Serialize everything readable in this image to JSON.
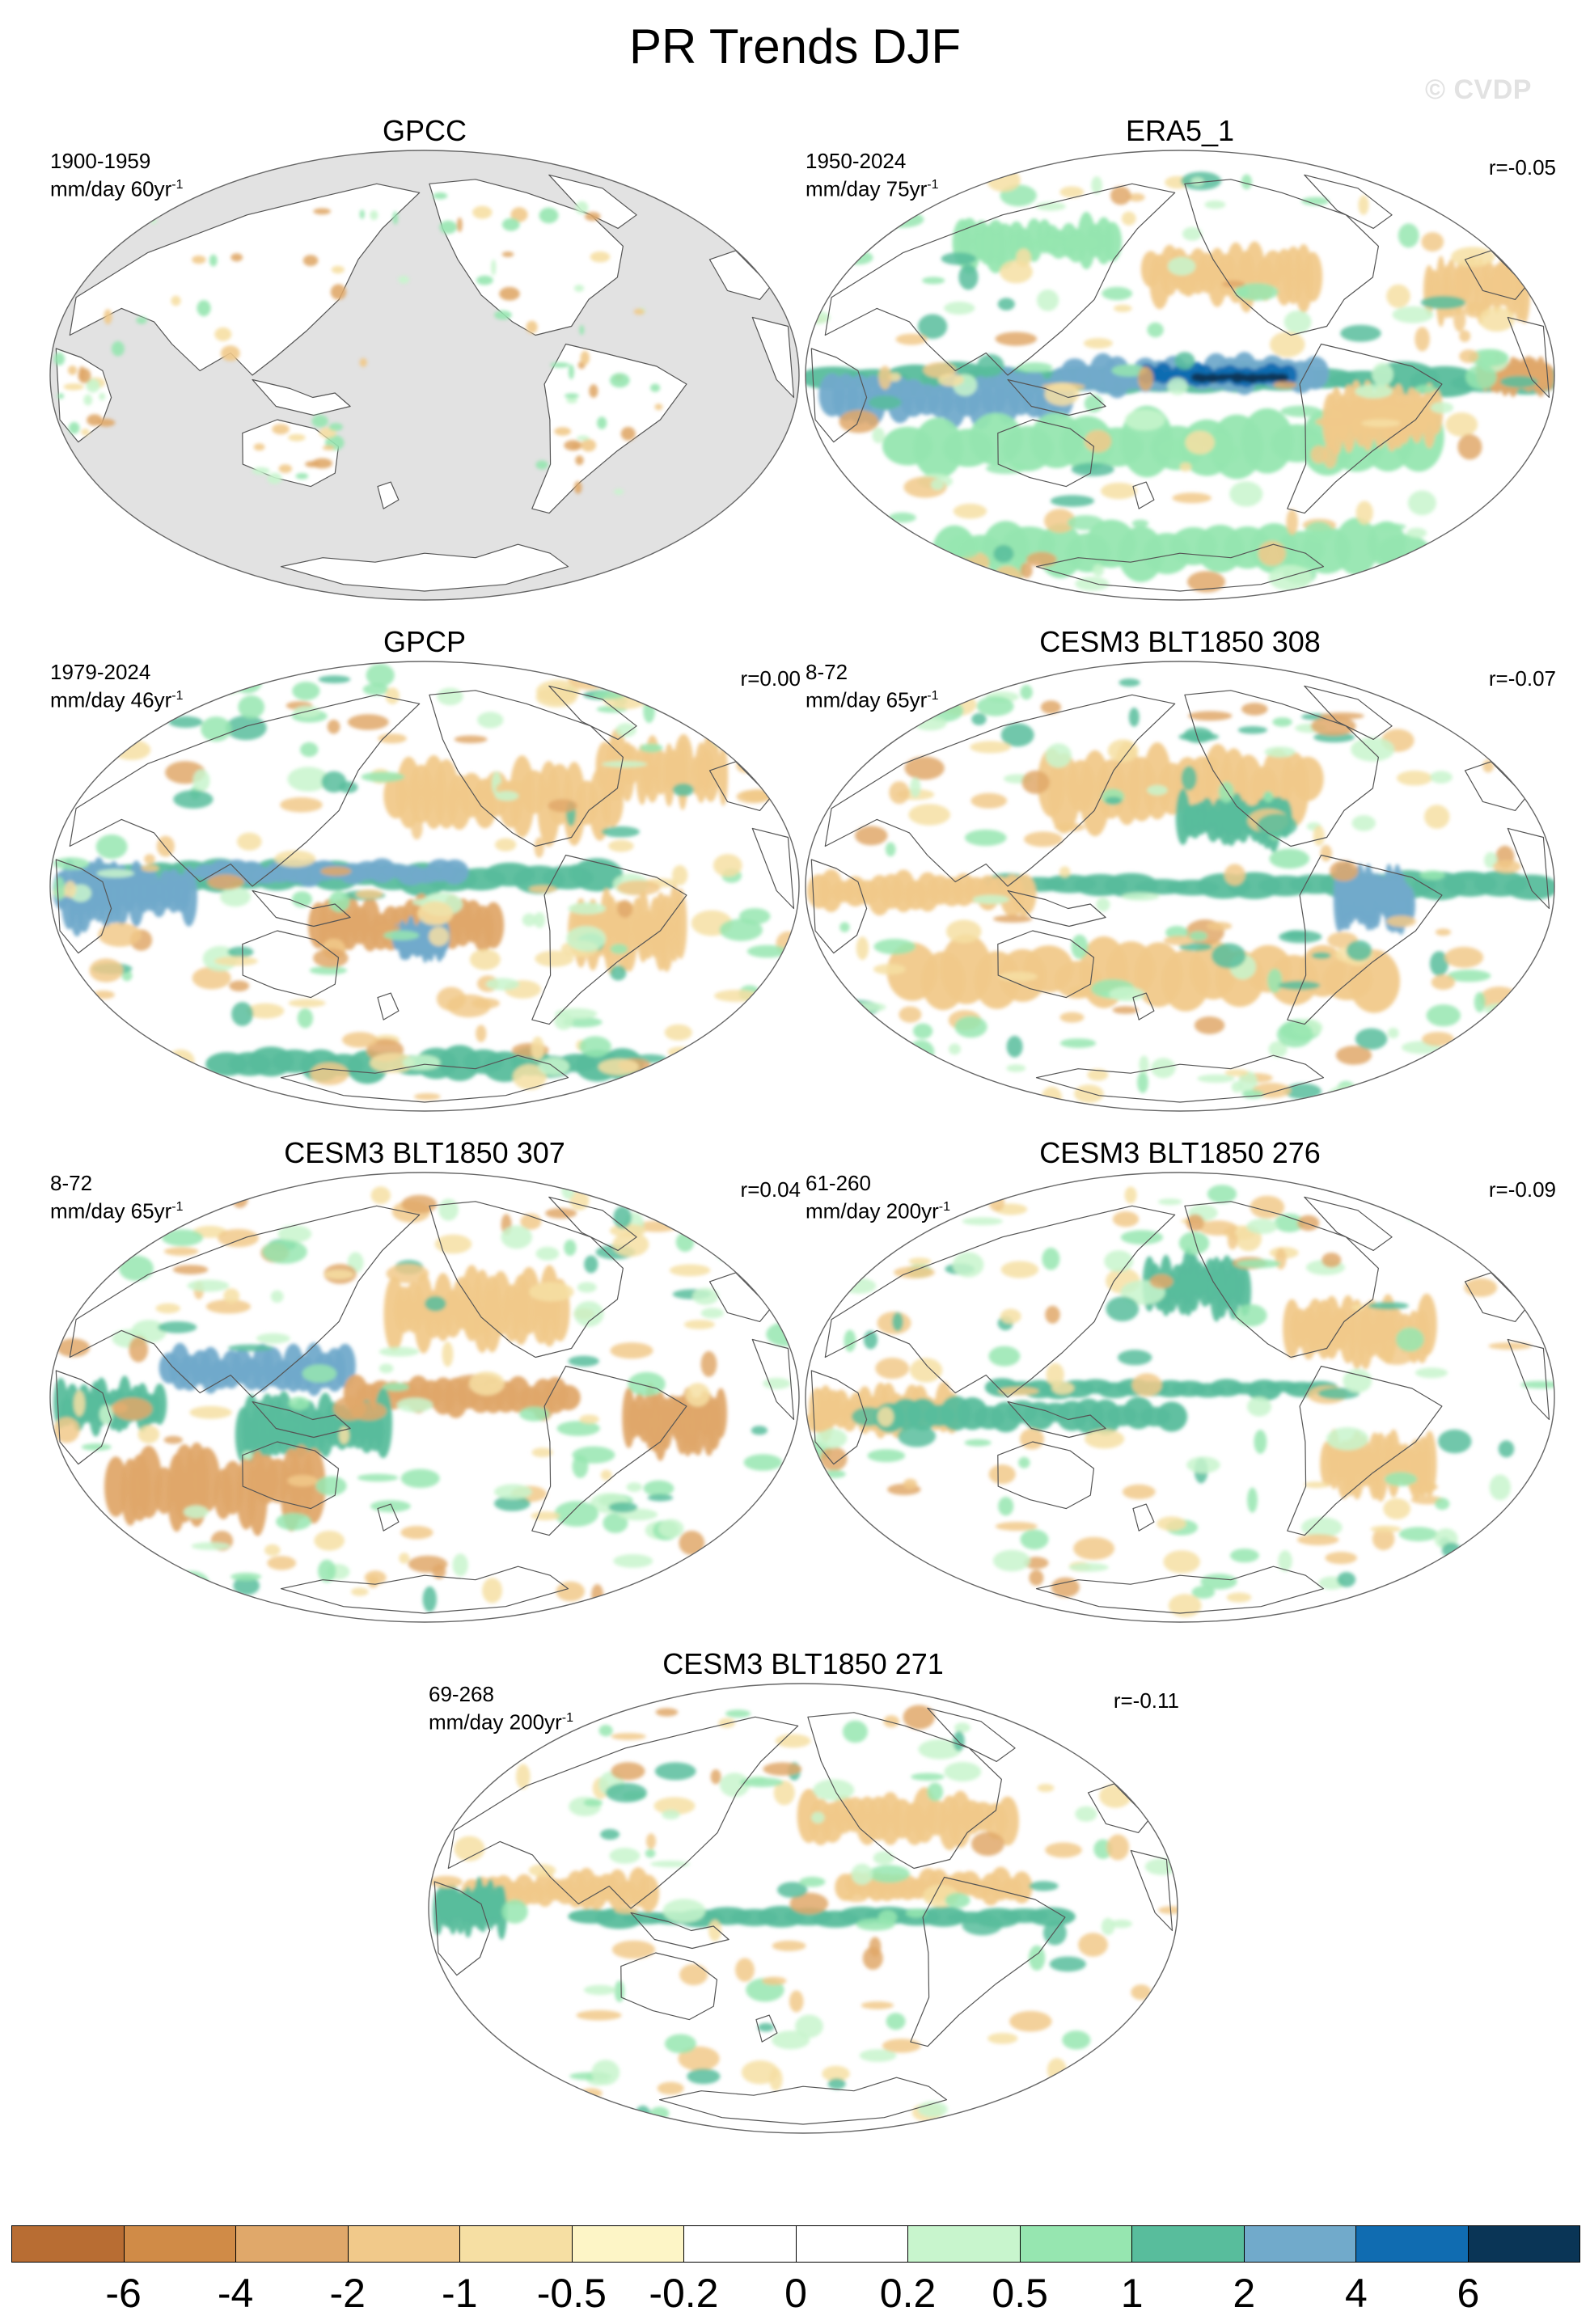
{
  "title": "PR Trends DJF",
  "watermark": "© CVDP",
  "panels": [
    {
      "title": "GPCC",
      "period": "1900-1959",
      "units": "mm/day 60yr",
      "units_exp": "-1",
      "corr": "",
      "pattern": "land-only",
      "grey_ocean": true
    },
    {
      "title": "ERA5_1",
      "period": "1950-2024",
      "units": "mm/day 75yr",
      "units_exp": "-1",
      "corr": "r=-0.05",
      "pattern": "era5",
      "grey_ocean": false
    },
    {
      "title": "GPCP",
      "period": "1979-2024",
      "units": "mm/day 46yr",
      "units_exp": "-1",
      "corr": "r=0.00",
      "pattern": "gpcp",
      "grey_ocean": false
    },
    {
      "title": "CESM3 BLT1850 308",
      "period": "8-72",
      "units": "mm/day 65yr",
      "units_exp": "-1",
      "corr": "r=-0.07",
      "pattern": "model-a",
      "grey_ocean": false
    },
    {
      "title": "CESM3 BLT1850 307",
      "period": "8-72",
      "units": "mm/day 65yr",
      "units_exp": "-1",
      "corr": "r=0.04",
      "pattern": "model-b",
      "grey_ocean": false
    },
    {
      "title": "CESM3 BLT1850 276",
      "period": "61-260",
      "units": "mm/day 200yr",
      "units_exp": "-1",
      "corr": "r=-0.09",
      "pattern": "model-c",
      "grey_ocean": false
    },
    {
      "title": "CESM3 BLT1850 271",
      "period": "69-268",
      "units": "mm/day 200yr",
      "units_exp": "-1",
      "corr": "r=-0.11",
      "pattern": "model-d",
      "grey_ocean": false
    }
  ],
  "colorbar": {
    "colors": [
      "#b86d33",
      "#d08b47",
      "#e0a86a",
      "#f1c98a",
      "#f6dfa3",
      "#fdf5c6",
      "#ffffff",
      "#ffffff",
      "#c8f5cd",
      "#96e6b0",
      "#58bd9c",
      "#71aacb",
      "#106cb1",
      "#0a3556"
    ],
    "labels": [
      "-6",
      "-4",
      "-2",
      "-1",
      "-0.5",
      "-0.2",
      "0",
      "0.2",
      "0.5",
      "1",
      "2",
      "4",
      "6"
    ]
  }
}
